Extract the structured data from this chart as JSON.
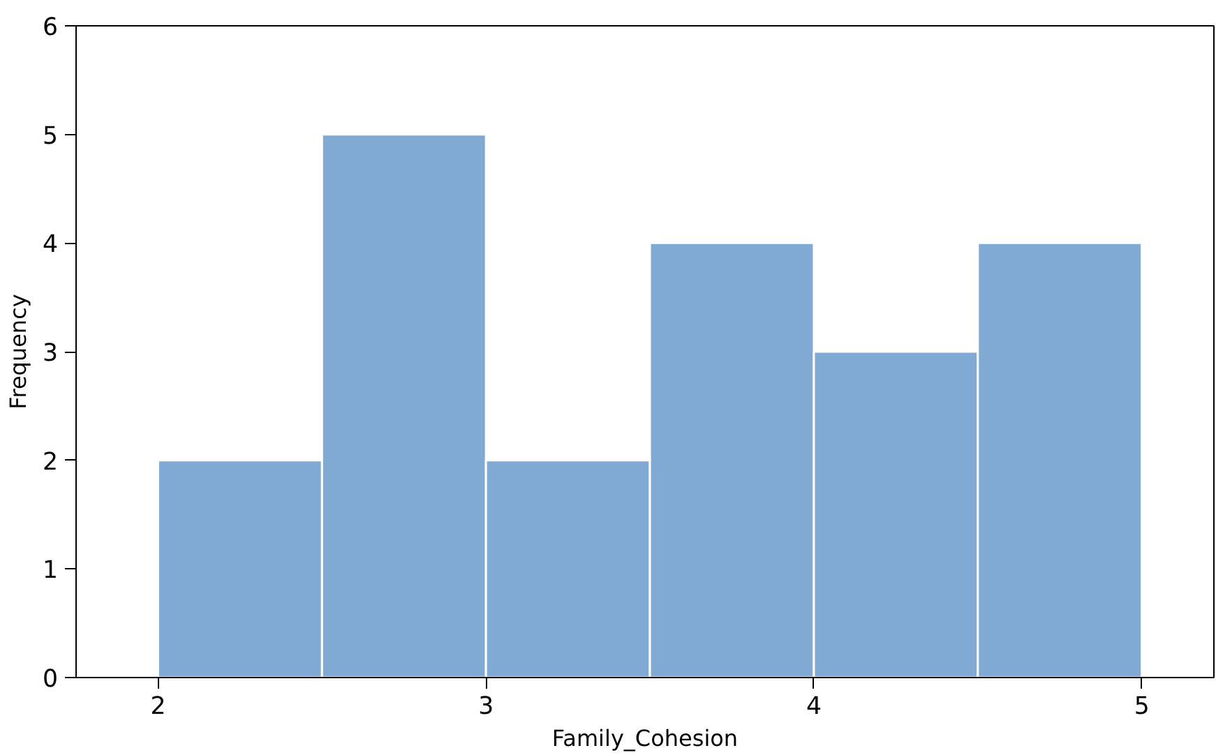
{
  "chart_data": {
    "type": "histogram",
    "xlabel": "Family_Cohesion",
    "ylabel": "Frequency",
    "bins": [
      2,
      2.5,
      3,
      3.5,
      4,
      4.5,
      5
    ],
    "values": [
      2,
      5,
      2,
      4,
      3,
      4
    ],
    "color": "#80a9d4",
    "xlim": [
      1.75,
      5.22
    ],
    "ylim": [
      0,
      6
    ],
    "xticks": [
      2,
      3,
      4,
      5
    ],
    "yticks": [
      0,
      1,
      2,
      3,
      4,
      5,
      6
    ],
    "grid": false
  }
}
